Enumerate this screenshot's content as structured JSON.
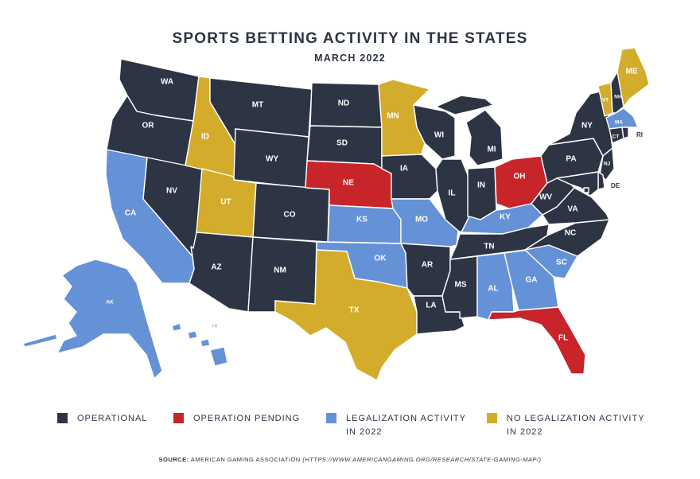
{
  "title": "SPORTS BETTING ACTIVITY IN THE STATES",
  "subtitle": "MARCH 2022",
  "colors": {
    "operational": "#2d3444",
    "pending": "#c8252a",
    "legalization": "#6591d6",
    "none": "#d4ac2b"
  },
  "legend": [
    {
      "key": "operational",
      "label": "OPERATIONAL"
    },
    {
      "key": "pending",
      "label": "OPERATION PENDING"
    },
    {
      "key": "legalization",
      "label": "LEGALIZATION ACTIVITY\nIN 2022"
    },
    {
      "key": "none",
      "label": "NO LEGALIZATION ACTIVITY\nIN 2022"
    }
  ],
  "source": {
    "label": "SOURCE:",
    "text": "AMERICAN GAMING ASSOCIATION",
    "url": "(HTTPS://WWW.AMERICANGAMING.ORG/RESEARCH/STATE-GAMING-MAP/)"
  },
  "states": [
    {
      "abbr": "WA",
      "status": "operational"
    },
    {
      "abbr": "OR",
      "status": "operational"
    },
    {
      "abbr": "CA",
      "status": "legalization"
    },
    {
      "abbr": "NV",
      "status": "operational"
    },
    {
      "abbr": "ID",
      "status": "none"
    },
    {
      "abbr": "MT",
      "status": "operational"
    },
    {
      "abbr": "WY",
      "status": "operational"
    },
    {
      "abbr": "UT",
      "status": "none"
    },
    {
      "abbr": "AZ",
      "status": "operational"
    },
    {
      "abbr": "CO",
      "status": "operational"
    },
    {
      "abbr": "NM",
      "status": "operational"
    },
    {
      "abbr": "ND",
      "status": "operational"
    },
    {
      "abbr": "SD",
      "status": "operational"
    },
    {
      "abbr": "NE",
      "status": "pending"
    },
    {
      "abbr": "KS",
      "status": "legalization"
    },
    {
      "abbr": "OK",
      "status": "legalization"
    },
    {
      "abbr": "TX",
      "status": "none"
    },
    {
      "abbr": "MN",
      "status": "none"
    },
    {
      "abbr": "IA",
      "status": "operational"
    },
    {
      "abbr": "MO",
      "status": "legalization"
    },
    {
      "abbr": "AR",
      "status": "operational"
    },
    {
      "abbr": "LA",
      "status": "operational"
    },
    {
      "abbr": "WI",
      "status": "operational"
    },
    {
      "abbr": "IL",
      "status": "operational"
    },
    {
      "abbr": "MI",
      "status": "operational"
    },
    {
      "abbr": "IN",
      "status": "operational"
    },
    {
      "abbr": "OH",
      "status": "pending"
    },
    {
      "abbr": "KY",
      "status": "legalization"
    },
    {
      "abbr": "TN",
      "status": "operational"
    },
    {
      "abbr": "MS",
      "status": "operational"
    },
    {
      "abbr": "AL",
      "status": "legalization"
    },
    {
      "abbr": "GA",
      "status": "legalization"
    },
    {
      "abbr": "FL",
      "status": "pending"
    },
    {
      "abbr": "SC",
      "status": "legalization"
    },
    {
      "abbr": "NC",
      "status": "operational"
    },
    {
      "abbr": "VA",
      "status": "operational"
    },
    {
      "abbr": "WV",
      "status": "operational"
    },
    {
      "abbr": "PA",
      "status": "operational"
    },
    {
      "abbr": "NY",
      "status": "operational"
    },
    {
      "abbr": "VT",
      "status": "none"
    },
    {
      "abbr": "NH",
      "status": "operational"
    },
    {
      "abbr": "ME",
      "status": "none"
    },
    {
      "abbr": "MA",
      "status": "legalization"
    },
    {
      "abbr": "CT",
      "status": "operational"
    },
    {
      "abbr": "RI",
      "status": "operational"
    },
    {
      "abbr": "NJ",
      "status": "operational"
    },
    {
      "abbr": "DE",
      "status": "operational"
    },
    {
      "abbr": "MD",
      "status": "operational"
    },
    {
      "abbr": "DC",
      "status": "operational"
    },
    {
      "abbr": "AK",
      "status": "legalization"
    },
    {
      "abbr": "HI",
      "status": "legalization"
    }
  ]
}
